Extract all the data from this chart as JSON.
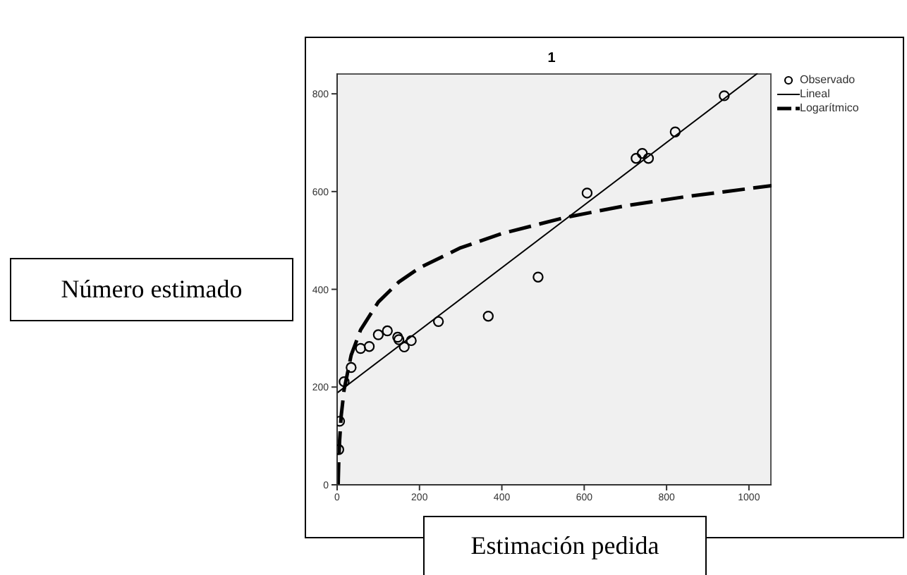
{
  "chart_data": {
    "type": "scatter",
    "title": "1",
    "xlabel": "Estimación pedida",
    "ylabel": "Número estimado",
    "xlim": [
      0,
      1055
    ],
    "ylim": [
      0,
      842
    ],
    "xticks": [
      0,
      200,
      400,
      600,
      800,
      1000
    ],
    "yticks": [
      0,
      200,
      400,
      600,
      800
    ],
    "legend": "top right",
    "series": [
      {
        "name": "Observado",
        "marker": "circle",
        "color": "#000000",
        "x": [
          4,
          6,
          17,
          34,
          57,
          78,
          100,
          122,
          147,
          150,
          163,
          180,
          246,
          367,
          488,
          607,
          726,
          741,
          756,
          821,
          940
        ],
        "values": [
          72,
          130,
          211,
          240,
          279,
          283,
          307,
          315,
          302,
          297,
          282,
          295,
          334,
          345,
          425,
          597,
          668,
          678,
          668,
          722,
          796
        ]
      },
      {
        "name": "Lineal",
        "type": "line",
        "line_style": "solid",
        "color": "#000000",
        "x": [
          0,
          1021
        ],
        "values": [
          188,
          842
        ]
      },
      {
        "name": "Logarítmico",
        "type": "line",
        "line_style": "dashed",
        "color": "#000000",
        "x": [
          2.5,
          4,
          6,
          10,
          17,
          34,
          57,
          100,
          150,
          200,
          300,
          400,
          554,
          700,
          850,
          1055
        ],
        "values": [
          0,
          49,
          90,
          142,
          195,
          265,
          317,
          374,
          415,
          444,
          485,
          514,
          547,
          571,
          590,
          612
        ]
      }
    ]
  }
}
